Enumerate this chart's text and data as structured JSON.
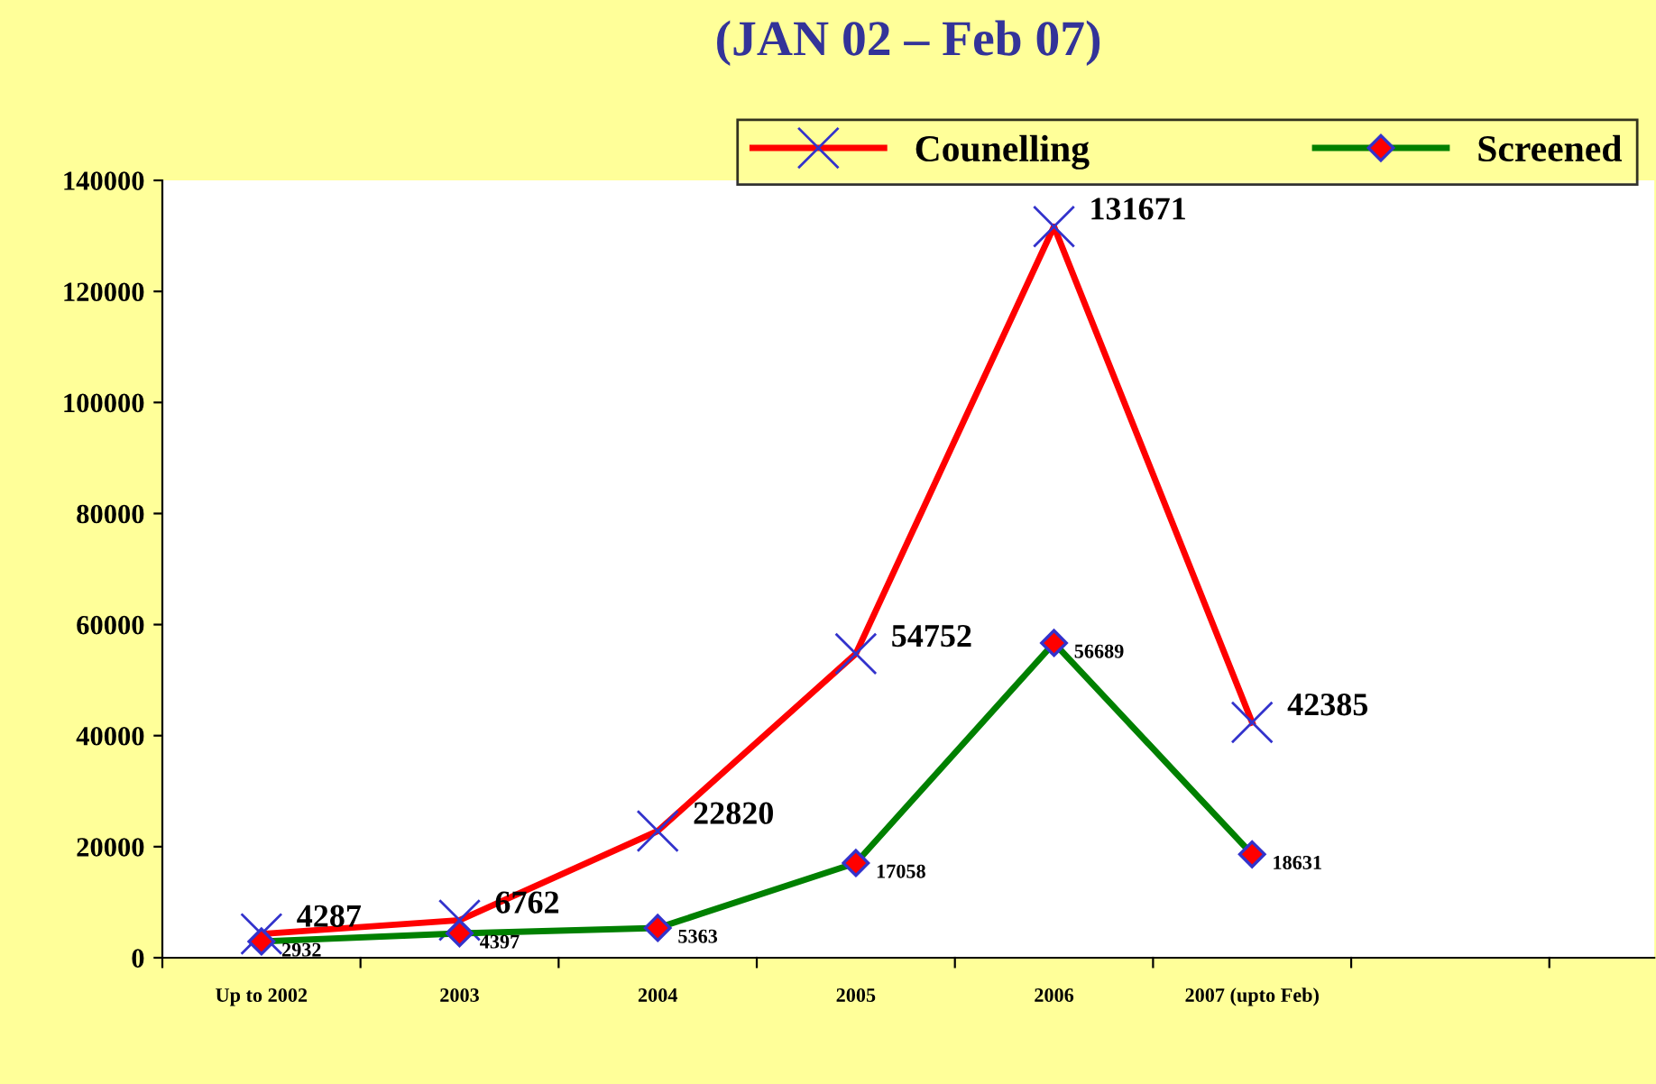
{
  "chart_data": {
    "type": "line",
    "title": "(JAN 02 – Feb 07)",
    "categories": [
      "Up to 2002",
      "2003",
      "2004",
      "2005",
      "2006",
      "2007 (upto Feb)",
      null
    ],
    "series": [
      {
        "name": "Counelling",
        "color": "#ff0000",
        "marker": "cross",
        "values": [
          4287,
          6762,
          22820,
          54752,
          131671,
          42385,
          null
        ]
      },
      {
        "name": "Screened",
        "color": "#008000",
        "marker": "diamond",
        "values": [
          2932,
          4397,
          5363,
          17058,
          56689,
          18631,
          null
        ]
      }
    ],
    "ylim": [
      0,
      140000
    ],
    "yticks": [
      0,
      20000,
      40000,
      60000,
      80000,
      100000,
      120000,
      140000
    ],
    "grid": false,
    "legend": "top right",
    "data_labels": true,
    "line_style": "solid"
  }
}
